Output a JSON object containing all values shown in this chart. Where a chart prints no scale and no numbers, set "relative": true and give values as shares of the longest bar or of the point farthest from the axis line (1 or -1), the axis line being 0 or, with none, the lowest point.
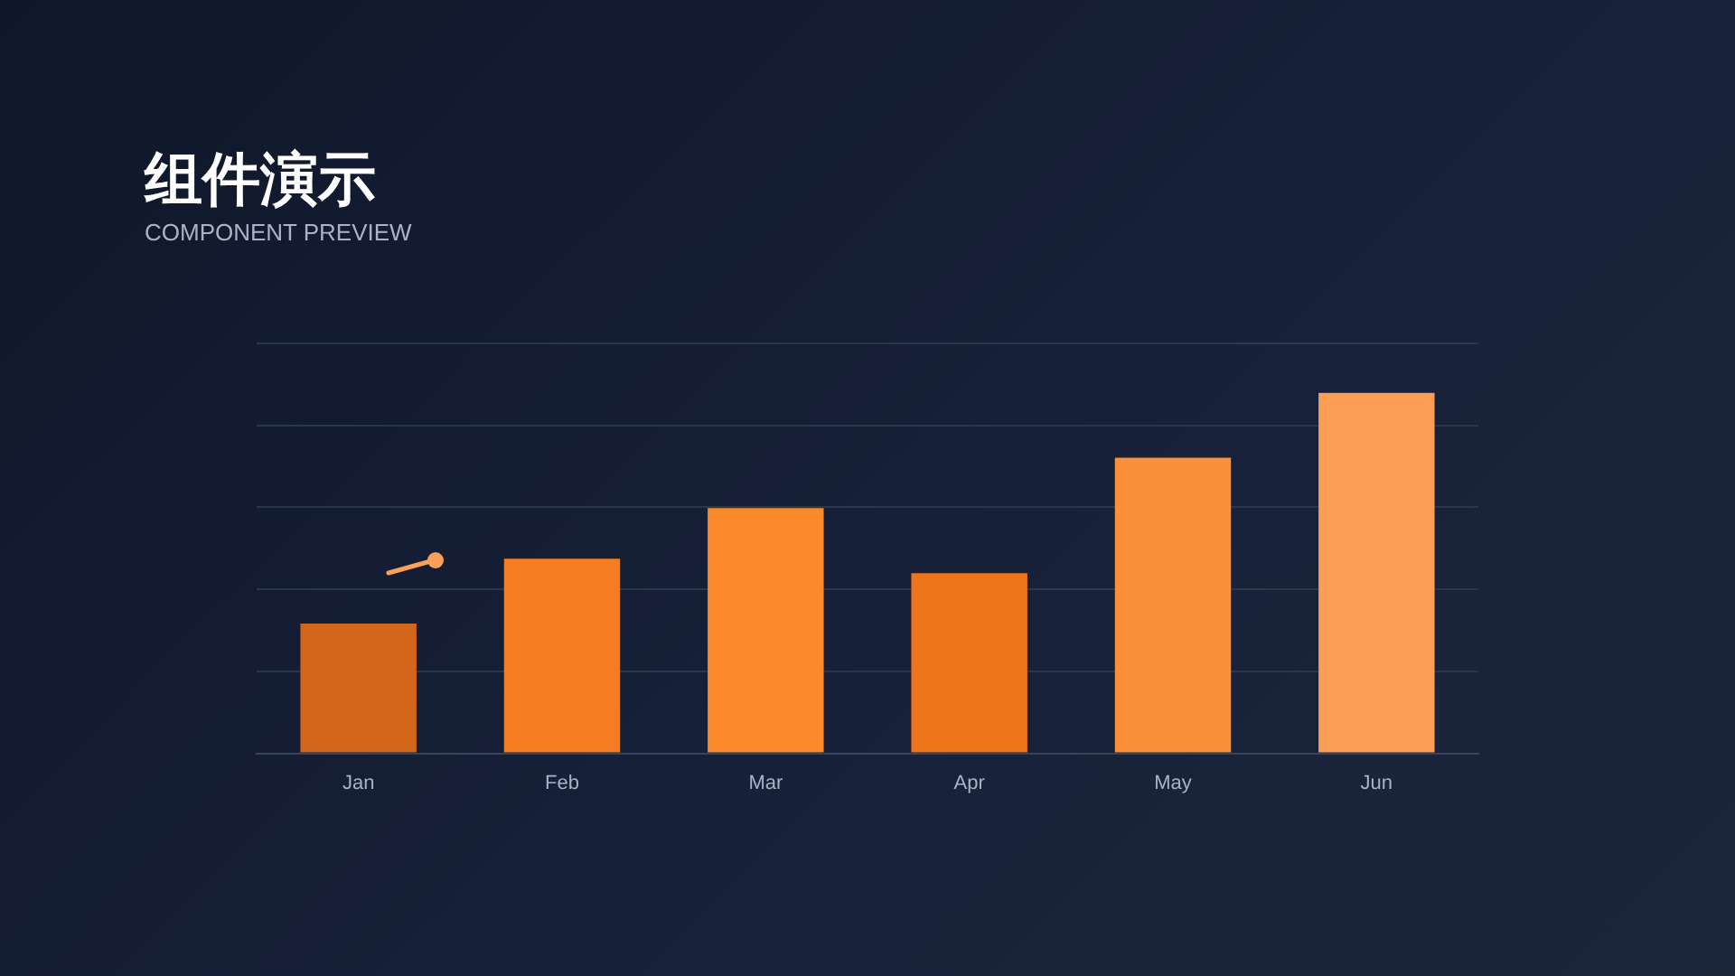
{
  "chart_data": {
    "type": "bar",
    "title": "组件演示",
    "subtitle": "COMPONENT PREVIEW",
    "categories": [
      "Jan",
      "Feb",
      "Mar",
      "Apr",
      "May",
      "Jun"
    ],
    "values": [
      0.36,
      0.54,
      0.68,
      0.5,
      0.82,
      1
    ],
    "colors": [
      "#d4661c",
      "#f57c20",
      "#fa8a2c",
      "#ee7419",
      "#fb903b",
      "#fd9e55"
    ],
    "relative": true,
    "grid": "y",
    "legend": false
  }
}
